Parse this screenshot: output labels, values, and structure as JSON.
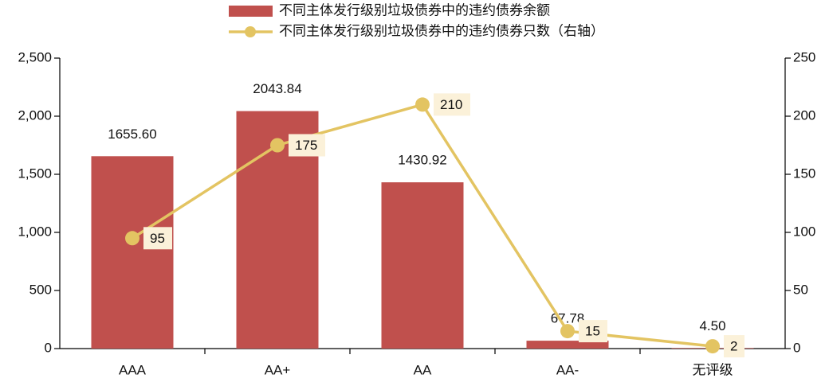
{
  "chart_data": {
    "type": "bar",
    "categories": [
      "AAA",
      "AA+",
      "AA",
      "AA-",
      "无评级"
    ],
    "series": [
      {
        "name": "不同主体发行级别垃圾债券中的违约债券余额",
        "type": "bar",
        "color": "#c0504d",
        "values": [
          1655.6,
          2043.84,
          1430.92,
          67.78,
          4.5
        ],
        "value_labels": [
          "1655.60",
          "2043.84",
          "1430.92",
          "67.78",
          "4.50"
        ]
      },
      {
        "name": "不同主体发行级别垃圾债券中的违约债券只数（右轴）",
        "type": "line",
        "axis": "y2",
        "color": "#e3c462",
        "values": [
          95,
          175,
          210,
          15,
          2
        ]
      }
    ],
    "ylim": [
      0,
      2500
    ],
    "yticks": [
      0,
      500,
      {
        "value": 1000,
        "label": "1,000"
      },
      {
        "value": 1500,
        "label": "1,500"
      },
      {
        "value": 2000,
        "label": "2,000"
      },
      {
        "value": 2500,
        "label": "2,500"
      }
    ],
    "y2lim": [
      0,
      250
    ],
    "y2ticks": [
      0,
      50,
      100,
      150,
      200,
      250
    ]
  }
}
